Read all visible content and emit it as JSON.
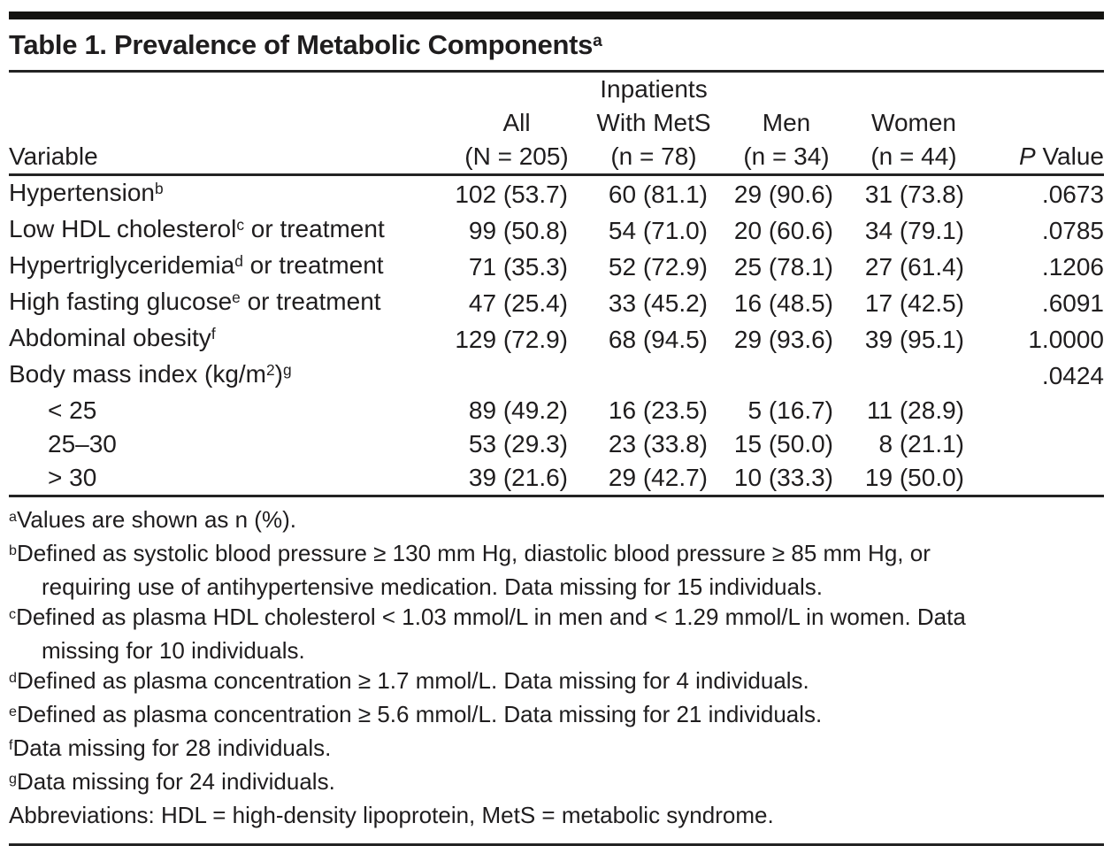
{
  "colors": {
    "background": "#ffffff",
    "text": "#1f1d1e",
    "rule": "#232323",
    "top_bar": "#141311"
  },
  "title": {
    "segments": [
      {
        "s": "plain",
        "v": "Table 1. Prevalence of Metabolic Components"
      },
      {
        "s": "sup",
        "v": "a"
      }
    ]
  },
  "table": {
    "columns": [
      {
        "key": "variable",
        "header_lines": [
          [
            {
              "s": "plain",
              "v": "Variable"
            }
          ]
        ]
      },
      {
        "key": "all",
        "header_lines": [
          [
            {
              "s": "plain",
              "v": "All"
            }
          ],
          [
            {
              "s": "plain",
              "v": "(N = 205)"
            }
          ]
        ]
      },
      {
        "key": "mets",
        "header_lines": [
          [
            {
              "s": "plain",
              "v": "Inpatients"
            }
          ],
          [
            {
              "s": "plain",
              "v": "With MetS"
            }
          ],
          [
            {
              "s": "plain",
              "v": "(n = 78)"
            }
          ]
        ]
      },
      {
        "key": "men",
        "header_lines": [
          [
            {
              "s": "plain",
              "v": "Men"
            }
          ],
          [
            {
              "s": "plain",
              "v": "(n = 34)"
            }
          ]
        ]
      },
      {
        "key": "women",
        "header_lines": [
          [
            {
              "s": "plain",
              "v": "Women"
            }
          ],
          [
            {
              "s": "plain",
              "v": "(n = 44)"
            }
          ]
        ]
      },
      {
        "key": "p",
        "header_lines": [
          [
            {
              "s": "italic",
              "v": "P"
            },
            {
              "s": "plain",
              "v": " Value"
            }
          ]
        ]
      }
    ],
    "rows": [
      {
        "indent": false,
        "variable": [
          {
            "s": "plain",
            "v": "Hypertension"
          },
          {
            "s": "sup",
            "v": "b"
          }
        ],
        "cells": [
          "102 (53.7)",
          "60 (81.1)",
          "29 (90.6)",
          "31 (73.8)",
          ".0673"
        ]
      },
      {
        "indent": false,
        "variable": [
          {
            "s": "plain",
            "v": "Low HDL cholesterol"
          },
          {
            "s": "sup",
            "v": "c"
          },
          {
            "s": "plain",
            "v": " or treatment"
          }
        ],
        "cells": [
          "99 (50.8)",
          "54 (71.0)",
          "20 (60.6)",
          "34 (79.1)",
          ".0785"
        ]
      },
      {
        "indent": false,
        "variable": [
          {
            "s": "plain",
            "v": "Hypertriglyceridemia"
          },
          {
            "s": "sup",
            "v": "d"
          },
          {
            "s": "plain",
            "v": " or treatment"
          }
        ],
        "cells": [
          "71 (35.3)",
          "52 (72.9)",
          "25 (78.1)",
          "27 (61.4)",
          ".1206"
        ]
      },
      {
        "indent": false,
        "variable": [
          {
            "s": "plain",
            "v": "High fasting glucose"
          },
          {
            "s": "sup",
            "v": "e"
          },
          {
            "s": "plain",
            "v": " or treatment"
          }
        ],
        "cells": [
          "47 (25.4)",
          "33 (45.2)",
          "16 (48.5)",
          "17 (42.5)",
          ".6091"
        ]
      },
      {
        "indent": false,
        "variable": [
          {
            "s": "plain",
            "v": "Abdominal obesity"
          },
          {
            "s": "sup",
            "v": "f"
          }
        ],
        "cells": [
          "129 (72.9)",
          "68 (94.5)",
          "29 (93.6)",
          "39 (95.1)",
          "1.0000"
        ]
      },
      {
        "indent": false,
        "variable": [
          {
            "s": "plain",
            "v": "Body mass index (kg/m"
          },
          {
            "s": "sup",
            "v": "2"
          },
          {
            "s": "plain",
            "v": ")"
          },
          {
            "s": "sup",
            "v": "g"
          }
        ],
        "cells": [
          "",
          "",
          "",
          "",
          ".0424"
        ]
      },
      {
        "indent": true,
        "variable": [
          {
            "s": "plain",
            "v": "< 25"
          }
        ],
        "cells": [
          "89 (49.2)",
          "16 (23.5)",
          "5 (16.7)",
          "11 (28.9)",
          ""
        ]
      },
      {
        "indent": true,
        "variable": [
          {
            "s": "plain",
            "v": "25–30"
          }
        ],
        "cells": [
          "53 (29.3)",
          "23 (33.8)",
          "15 (50.0)",
          "8 (21.1)",
          ""
        ]
      },
      {
        "indent": true,
        "variable": [
          {
            "s": "plain",
            "v": "> 30"
          }
        ],
        "cells": [
          "39 (21.6)",
          "29 (42.7)",
          "10 (33.3)",
          "19 (50.0)",
          ""
        ]
      }
    ]
  },
  "footnotes": [
    {
      "id": "a",
      "lines": [
        {
          "indent": false,
          "segments": [
            {
              "s": "sup",
              "v": "a"
            },
            {
              "s": "plain",
              "v": "Values are shown as n (%)."
            }
          ]
        }
      ]
    },
    {
      "id": "b",
      "lines": [
        {
          "indent": false,
          "segments": [
            {
              "s": "sup",
              "v": "b"
            },
            {
              "s": "plain",
              "v": "Defined as systolic blood pressure ≥ 130 mm Hg, diastolic blood pressure ≥ 85 mm Hg, or"
            }
          ]
        },
        {
          "indent": true,
          "segments": [
            {
              "s": "plain",
              "v": "requiring use of antihypertensive medication. Data missing for 15 individuals."
            }
          ]
        }
      ]
    },
    {
      "id": "c",
      "lines": [
        {
          "indent": false,
          "segments": [
            {
              "s": "sup",
              "v": "c"
            },
            {
              "s": "plain",
              "v": "Defined as plasma HDL cholesterol < 1.03 mmol/L in men and < 1.29 mmol/L in women. Data"
            }
          ]
        },
        {
          "indent": true,
          "segments": [
            {
              "s": "plain",
              "v": "missing for 10 individuals."
            }
          ]
        }
      ]
    },
    {
      "id": "d",
      "lines": [
        {
          "indent": false,
          "segments": [
            {
              "s": "sup",
              "v": "d"
            },
            {
              "s": "plain",
              "v": "Defined as plasma concentration ≥ 1.7 mmol/L. Data missing for 4 individuals."
            }
          ]
        }
      ]
    },
    {
      "id": "e",
      "lines": [
        {
          "indent": false,
          "segments": [
            {
              "s": "sup",
              "v": "e"
            },
            {
              "s": "plain",
              "v": "Defined as plasma concentration ≥ 5.6 mmol/L. Data missing for 21 individuals."
            }
          ]
        }
      ]
    },
    {
      "id": "f",
      "lines": [
        {
          "indent": false,
          "segments": [
            {
              "s": "sup",
              "v": "f"
            },
            {
              "s": "plain",
              "v": "Data missing for 28 individuals."
            }
          ]
        }
      ]
    },
    {
      "id": "g",
      "lines": [
        {
          "indent": false,
          "segments": [
            {
              "s": "sup",
              "v": "g"
            },
            {
              "s": "plain",
              "v": "Data missing for 24 individuals."
            }
          ]
        }
      ]
    },
    {
      "id": "abbreviations",
      "lines": [
        {
          "indent": false,
          "segments": [
            {
              "s": "plain",
              "v": "Abbreviations: HDL = high-density lipoprotein, MetS = metabolic syndrome."
            }
          ]
        }
      ]
    }
  ]
}
